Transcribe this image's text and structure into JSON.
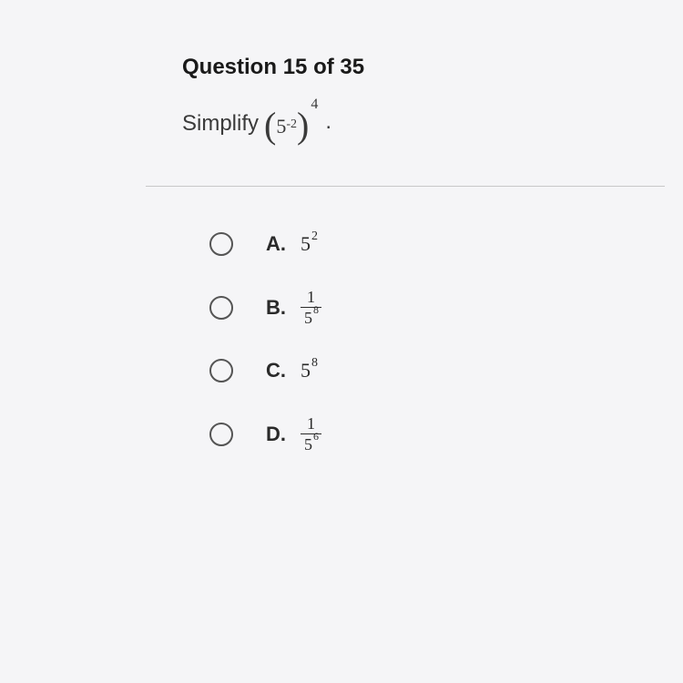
{
  "header": {
    "prefix": "Question",
    "current": "15",
    "of_word": "of",
    "total": "35"
  },
  "prompt": {
    "lead": "Simplify",
    "inner_base": "5",
    "inner_exp": "-2",
    "outer_exp": "4"
  },
  "options": [
    {
      "letter": "A.",
      "type": "power",
      "base": "5",
      "exp": "2"
    },
    {
      "letter": "B.",
      "type": "fraction_power",
      "num": "1",
      "den_base": "5",
      "den_exp": "8"
    },
    {
      "letter": "C.",
      "type": "power",
      "base": "5",
      "exp": "8"
    },
    {
      "letter": "D.",
      "type": "fraction_power",
      "num": "1",
      "den_base": "5",
      "den_exp": "6"
    }
  ],
  "style": {
    "background": "#f5f5f7",
    "text_color": "#2a2a2a",
    "header_color": "#1a1a1a",
    "divider_color": "#c8c8c8",
    "radio_border": "#555555",
    "header_fontsize": 24,
    "prompt_fontsize": 24,
    "option_fontsize": 22,
    "sup_fontsize": 14,
    "radio_size": 26,
    "option_gap": 36
  }
}
